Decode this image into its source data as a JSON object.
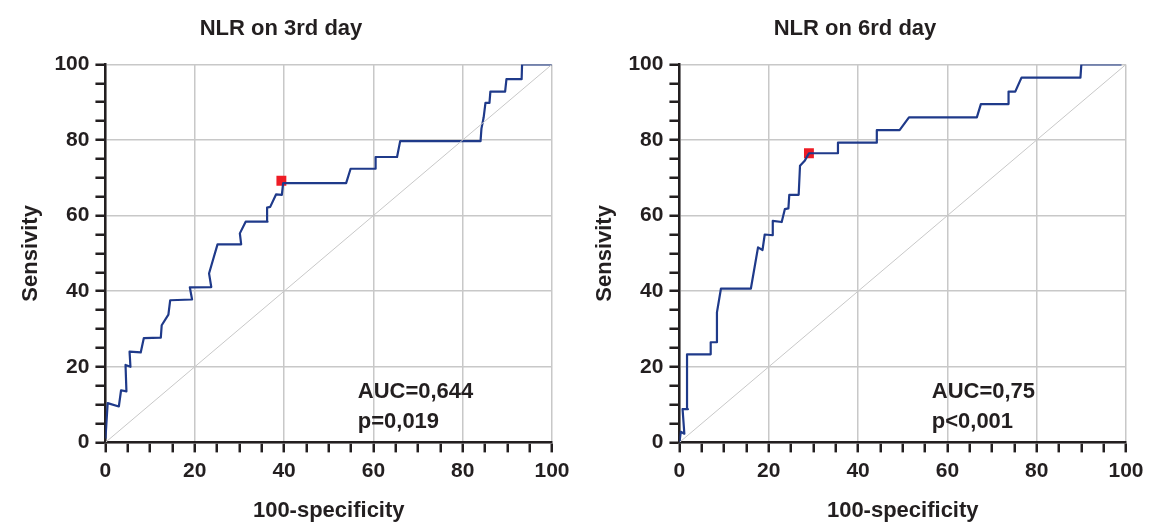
{
  "chart_data": [
    {
      "type": "line",
      "title": "NLR on 3rd day",
      "xlabel": "100-specificity",
      "ylabel": "Sensivity",
      "xlim": [
        0,
        100
      ],
      "ylim": [
        0,
        100
      ],
      "xticks": [
        0,
        {
          "value": 5,
          "label": null
        },
        20,
        {
          "value": 10,
          "label": null
        },
        {
          "value": 15,
          "label": null
        },
        40,
        {
          "value": 25,
          "label": null
        },
        {
          "value": 30,
          "label": null
        },
        {
          "value": 35,
          "label": null
        },
        60,
        {
          "value": 45,
          "label": null
        },
        {
          "value": 50,
          "label": null
        },
        {
          "value": 55,
          "label": null
        },
        80,
        {
          "value": 65,
          "label": null
        },
        {
          "value": 70,
          "label": null
        },
        {
          "value": 75,
          "label": null
        },
        100,
        {
          "value": 85,
          "label": null
        },
        {
          "value": 90,
          "label": null
        },
        {
          "value": 95,
          "label": null
        }
      ],
      "yticks": [
        0,
        {
          "value": 5,
          "label": null
        },
        20,
        {
          "value": 10,
          "label": null
        },
        {
          "value": 15,
          "label": null
        },
        40,
        {
          "value": 25,
          "label": null
        },
        {
          "value": 30,
          "label": null
        },
        {
          "value": 35,
          "label": null
        },
        60,
        {
          "value": 45,
          "label": null
        },
        {
          "value": 50,
          "label": null
        },
        {
          "value": 55,
          "label": null
        },
        80,
        {
          "value": 65,
          "label": null
        },
        {
          "value": 70,
          "label": null
        },
        {
          "value": 75,
          "label": null
        },
        100,
        {
          "value": 85,
          "label": null
        },
        {
          "value": 90,
          "label": null
        },
        {
          "value": 95,
          "label": null
        }
      ],
      "grid": true,
      "legend": false,
      "annotations": [
        "AUC=0,644",
        "p=0,019"
      ],
      "series": [
        {
          "color": "#c8c8c8",
          "x": [
            0,
            100
          ],
          "values": [
            0,
            100
          ]
        },
        {
          "type": "step",
          "color": "#1f3a8a",
          "x": [
            0,
            0.5,
            3,
            3.5,
            4.7,
            4.5,
            5.6,
            5.4,
            7.9,
            8.6,
            12.4,
            12.6,
            14.1,
            14.5,
            19.4,
            18.9,
            23.7,
            23.2,
            25.1,
            30.4,
            30.1,
            31.4,
            36.3,
            36.2,
            36.9,
            38.2,
            39.5,
            39.8,
            53.9,
            54.9,
            60.5,
            60.5,
            65.3,
            66,
            84,
            84.2,
            84.7,
            85.1,
            86,
            86.2,
            89.5,
            89.8,
            93.2,
            93.3,
            100
          ],
          "values": [
            1,
            10.4,
            9.5,
            13.8,
            13.5,
            20.5,
            20,
            24,
            23.8,
            27.6,
            27.7,
            31,
            33.8,
            37.6,
            37.8,
            41,
            41.1,
            44.7,
            52.4,
            52.4,
            55.3,
            58.4,
            58.4,
            62.1,
            62.3,
            65.6,
            65.5,
            68.6,
            68.6,
            72.4,
            72.4,
            75.5,
            75.5,
            79.7,
            79.7,
            83,
            86,
            89.8,
            89.8,
            92.8,
            92.8,
            96.1,
            96.1,
            100,
            100
          ]
        },
        {
          "type": "scatter",
          "color": "#ee1c25",
          "marker": "square",
          "x": [
            39.4
          ],
          "values": [
            69.2
          ]
        }
      ]
    },
    {
      "type": "line",
      "title": "NLR on 6rd day",
      "xlabel": "100-specificity",
      "ylabel": "Sensivity",
      "xlim": [
        0,
        100
      ],
      "ylim": [
        0,
        100
      ],
      "xticks": [
        0,
        {
          "value": 5,
          "label": null
        },
        20,
        {
          "value": 10,
          "label": null
        },
        {
          "value": 15,
          "label": null
        },
        40,
        {
          "value": 25,
          "label": null
        },
        {
          "value": 30,
          "label": null
        },
        {
          "value": 35,
          "label": null
        },
        60,
        {
          "value": 45,
          "label": null
        },
        {
          "value": 50,
          "label": null
        },
        {
          "value": 55,
          "label": null
        },
        80,
        {
          "value": 65,
          "label": null
        },
        {
          "value": 70,
          "label": null
        },
        {
          "value": 75,
          "label": null
        },
        100,
        {
          "value": 85,
          "label": null
        },
        {
          "value": 90,
          "label": null
        },
        {
          "value": 95,
          "label": null
        }
      ],
      "yticks": [
        0,
        {
          "value": 5,
          "label": null
        },
        20,
        {
          "value": 10,
          "label": null
        },
        {
          "value": 15,
          "label": null
        },
        40,
        {
          "value": 25,
          "label": null
        },
        {
          "value": 30,
          "label": null
        },
        {
          "value": 35,
          "label": null
        },
        60,
        {
          "value": 45,
          "label": null
        },
        {
          "value": 50,
          "label": null
        },
        {
          "value": 55,
          "label": null
        },
        80,
        {
          "value": 65,
          "label": null
        },
        {
          "value": 70,
          "label": null
        },
        {
          "value": 75,
          "label": null
        },
        100,
        {
          "value": 85,
          "label": null
        },
        {
          "value": 90,
          "label": null
        },
        {
          "value": 95,
          "label": null
        }
      ],
      "grid": true,
      "legend": false,
      "annotations": [
        "AUC=0,75",
        "p<0,001"
      ],
      "series": [
        {
          "color": "#c8c8c8",
          "x": [
            0,
            100
          ],
          "values": [
            0,
            100
          ]
        },
        {
          "type": "step",
          "color": "#1f3a8a",
          "x": [
            0,
            0.3,
            1.1,
            0.7,
            1.9,
            1.7,
            6.9,
            7,
            8.4,
            8.4,
            9.3,
            16,
            17.6,
            18.6,
            19.1,
            20.9,
            20.9,
            22.9,
            23.6,
            24.4,
            24.6,
            26.7,
            27,
            28.1,
            29,
            35.5,
            35.5,
            44.2,
            44.2,
            49.3,
            51.4,
            66.6,
            67.5,
            73.7,
            73.7,
            75.2,
            76.6,
            89.8,
            90,
            99
          ],
          "values": [
            0,
            2.8,
            2.3,
            8.8,
            8.8,
            23.3,
            23.3,
            26.5,
            26.5,
            34.4,
            40.7,
            40.7,
            51.6,
            50.9,
            55,
            54.8,
            58.6,
            58.3,
            61.7,
            61.9,
            65.5,
            65.5,
            73.2,
            74.6,
            76.5,
            76.5,
            79.3,
            79.3,
            82.6,
            82.6,
            86,
            86,
            89.5,
            89.5,
            92.8,
            92.8,
            96.5,
            96.5,
            100,
            100
          ]
        },
        {
          "type": "scatter",
          "color": "#ee1c25",
          "marker": "square",
          "x": [
            29
          ],
          "values": [
            76.5
          ]
        }
      ]
    }
  ]
}
